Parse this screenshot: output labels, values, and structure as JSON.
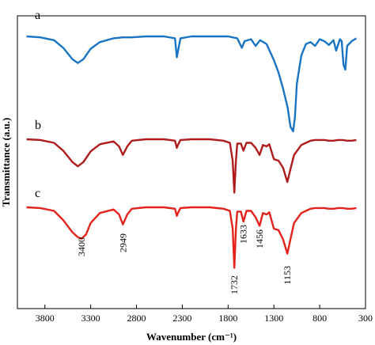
{
  "chart_data": {
    "type": "line",
    "xlabel": "Wavenumber (cm⁻¹)",
    "ylabel": "Transmittance (a.u.)",
    "xlim": [
      4100,
      300
    ],
    "x_reversed": true,
    "x_ticks": [
      3800,
      3300,
      2800,
      2300,
      1800,
      1300,
      800,
      300
    ],
    "x_tick_labels": [
      "3800",
      "3300",
      "2800",
      "2300",
      "1800",
      "1300",
      "800",
      "300"
    ],
    "y_tick_labels_shown": false,
    "grid": false,
    "legend": "none",
    "series": [
      {
        "name": "a",
        "color": "#1a74c4",
        "offset": 0.0,
        "x": [
          4000,
          3850,
          3700,
          3600,
          3500,
          3440,
          3380,
          3300,
          3200,
          3050,
          2950,
          2850,
          2700,
          2500,
          2380,
          2360,
          2340,
          2320,
          2200,
          2000,
          1800,
          1700,
          1650,
          1620,
          1550,
          1500,
          1450,
          1380,
          1300,
          1250,
          1200,
          1150,
          1120,
          1090,
          1070,
          1050,
          1000,
          950,
          900,
          850,
          800,
          750,
          700,
          650,
          620,
          580,
          560,
          540,
          520,
          500,
          450,
          400
        ],
        "y": [
          0,
          -0.01,
          -0.04,
          -0.12,
          -0.24,
          -0.28,
          -0.24,
          -0.13,
          -0.06,
          -0.02,
          -0.01,
          -0.01,
          0,
          0,
          -0.02,
          -0.22,
          -0.12,
          -0.02,
          0,
          0,
          0,
          -0.02,
          -0.12,
          -0.05,
          -0.03,
          -0.1,
          -0.04,
          -0.08,
          -0.25,
          -0.38,
          -0.55,
          -0.75,
          -0.95,
          -1.0,
          -0.85,
          -0.5,
          -0.2,
          -0.08,
          -0.06,
          -0.1,
          -0.03,
          -0.05,
          -0.09,
          -0.04,
          -0.15,
          -0.03,
          -0.05,
          -0.3,
          -0.35,
          -0.1,
          -0.05,
          -0.02
        ]
      },
      {
        "name": "b",
        "color": "#b01c1c",
        "offset": -1.0,
        "x": [
          4000,
          3850,
          3700,
          3600,
          3500,
          3440,
          3380,
          3300,
          3200,
          3050,
          2990,
          2949,
          2900,
          2850,
          2700,
          2500,
          2380,
          2360,
          2340,
          2320,
          2200,
          2000,
          1850,
          1780,
          1750,
          1732,
          1715,
          1700,
          1660,
          1633,
          1600,
          1550,
          1500,
          1456,
          1420,
          1380,
          1350,
          1300,
          1250,
          1200,
          1153,
          1120,
          1080,
          1000,
          950,
          900,
          850,
          800,
          750,
          700,
          650,
          600,
          550,
          500,
          450,
          400
        ],
        "y": [
          0,
          -0.01,
          -0.05,
          -0.16,
          -0.32,
          -0.38,
          -0.32,
          -0.17,
          -0.07,
          -0.03,
          -0.1,
          -0.22,
          -0.1,
          -0.02,
          0,
          0,
          -0.02,
          -0.12,
          -0.06,
          -0.01,
          0,
          0,
          -0.02,
          -0.05,
          -0.3,
          -0.75,
          -0.3,
          -0.06,
          -0.06,
          -0.16,
          -0.05,
          -0.05,
          -0.12,
          -0.22,
          -0.08,
          -0.1,
          -0.07,
          -0.28,
          -0.3,
          -0.4,
          -0.6,
          -0.42,
          -0.22,
          -0.08,
          -0.05,
          -0.02,
          -0.01,
          -0.01,
          -0.01,
          -0.02,
          -0.02,
          -0.01,
          -0.01,
          -0.02,
          -0.02,
          -0.01
        ]
      },
      {
        "name": "c",
        "color": "#e3221c",
        "offset": -2.0,
        "x": [
          4000,
          3850,
          3700,
          3600,
          3500,
          3440,
          3400,
          3350,
          3300,
          3200,
          3050,
          2990,
          2949,
          2900,
          2850,
          2700,
          2500,
          2380,
          2360,
          2340,
          2320,
          2200,
          2000,
          1850,
          1780,
          1750,
          1732,
          1715,
          1700,
          1660,
          1633,
          1600,
          1550,
          1500,
          1456,
          1420,
          1380,
          1350,
          1300,
          1250,
          1200,
          1153,
          1120,
          1080,
          1000,
          950,
          900,
          850,
          800,
          750,
          700,
          650,
          600,
          550,
          500,
          450,
          400
        ],
        "y": [
          0,
          -0.01,
          -0.05,
          -0.18,
          -0.35,
          -0.42,
          -0.44,
          -0.38,
          -0.22,
          -0.08,
          -0.03,
          -0.1,
          -0.24,
          -0.1,
          -0.02,
          0,
          0,
          -0.02,
          -0.12,
          -0.06,
          -0.01,
          0,
          0,
          -0.02,
          -0.05,
          -0.3,
          -0.85,
          -0.3,
          -0.06,
          -0.06,
          -0.2,
          -0.05,
          -0.05,
          -0.14,
          -0.26,
          -0.08,
          -0.1,
          -0.07,
          -0.3,
          -0.32,
          -0.45,
          -0.65,
          -0.45,
          -0.22,
          -0.08,
          -0.05,
          -0.02,
          -0.01,
          -0.01,
          -0.01,
          -0.02,
          -0.02,
          -0.01,
          -0.01,
          -0.02,
          -0.02,
          -0.01
        ]
      }
    ],
    "annotations": [
      {
        "text": "3400",
        "x": 3400,
        "series": "c"
      },
      {
        "text": "2949",
        "x": 2949,
        "series": "c"
      },
      {
        "text": "1732",
        "x": 1732,
        "series": "c"
      },
      {
        "text": "1633",
        "x": 1633,
        "series": "c"
      },
      {
        "text": "1456",
        "x": 1456,
        "series": "c"
      },
      {
        "text": "1153",
        "x": 1153,
        "series": "c"
      }
    ]
  }
}
